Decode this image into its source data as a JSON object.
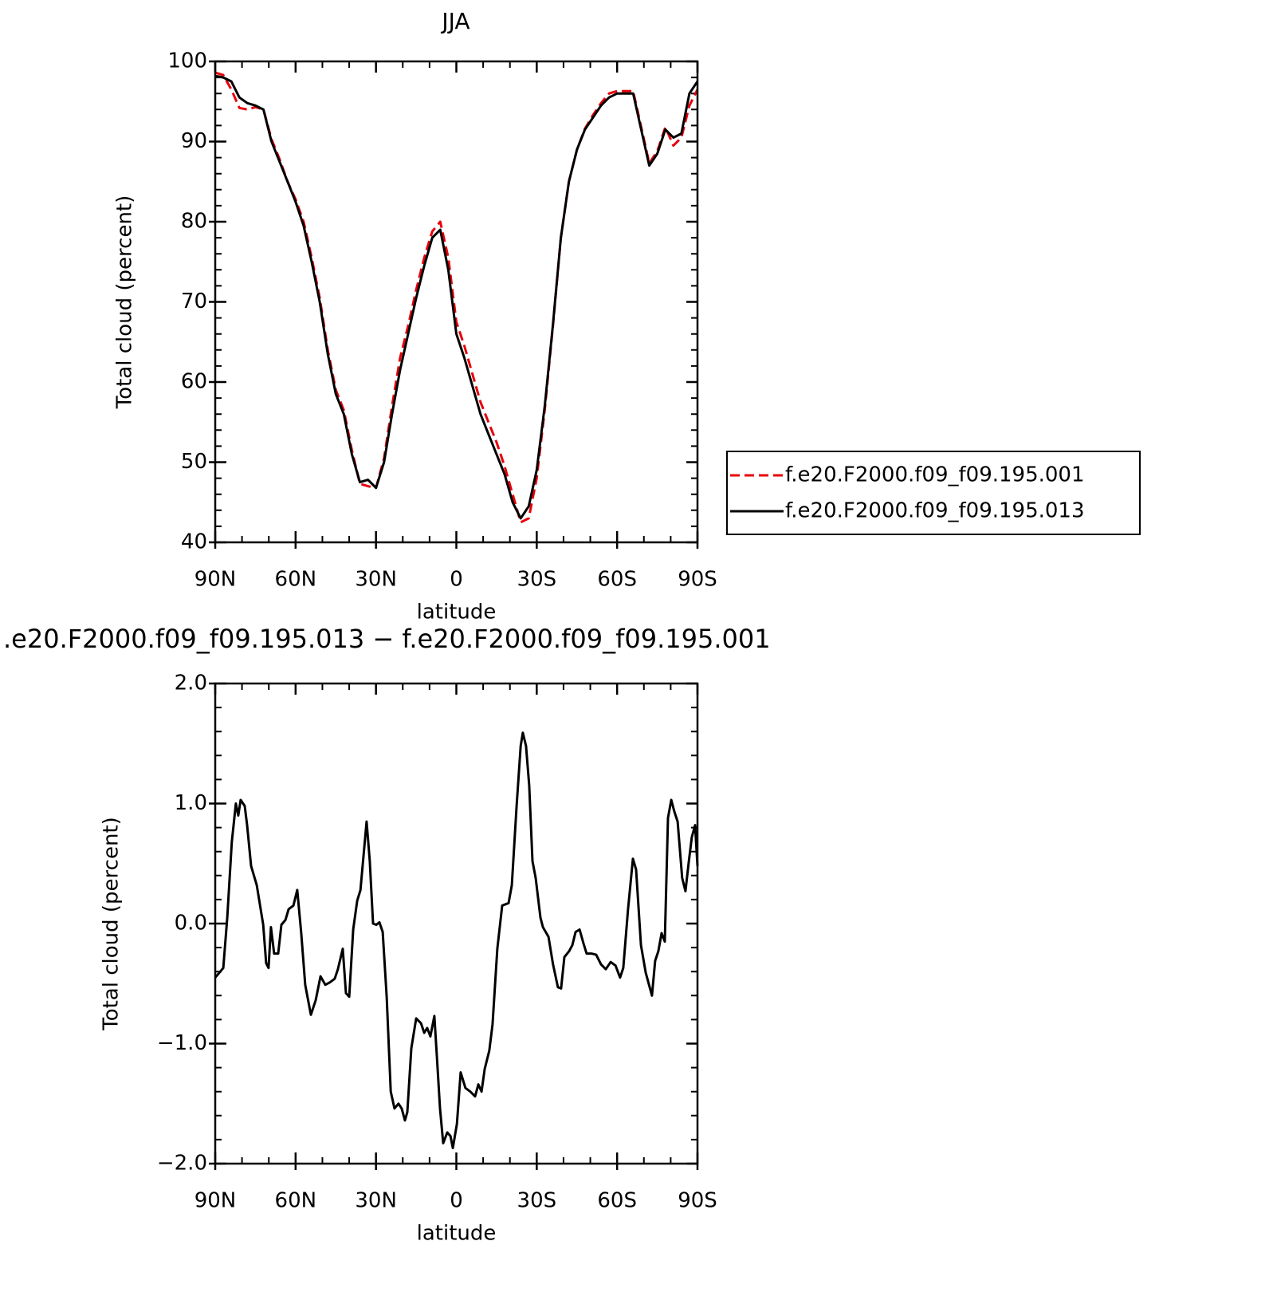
{
  "chart_data": [
    {
      "type": "line",
      "title": "JJA",
      "xlabel": "latitude",
      "ylabel": "Total cloud (percent)",
      "x": [
        90,
        87,
        84,
        81,
        78,
        75,
        72,
        69,
        66,
        63,
        60,
        57,
        54,
        51,
        48,
        45,
        42,
        39,
        36,
        33,
        30,
        27,
        24,
        21,
        18,
        15,
        12,
        9,
        6,
        3,
        0,
        -3,
        -6,
        -9,
        -12,
        -15,
        -18,
        -21,
        -24,
        -27,
        -30,
        -33,
        -36,
        -39,
        -42,
        -45,
        -48,
        -51,
        -54,
        -57,
        -60,
        -63,
        -66,
        -69,
        -72,
        -75,
        -78,
        -81,
        -84,
        -87,
        -90
      ],
      "series": [
        {
          "name": "f.e20.F2000.f09_f09.195.001",
          "color": "#e8000b",
          "line_style": "dashed",
          "values": [
            98.6,
            98.3,
            96.5,
            94.2,
            94.0,
            94.3,
            94.0,
            90.3,
            87.8,
            85.0,
            82.8,
            80.0,
            75.5,
            70.5,
            64.0,
            59.0,
            56.5,
            51.5,
            47.3,
            47.0,
            46.8,
            50.5,
            57.0,
            63.0,
            67.0,
            71.5,
            75.5,
            78.8,
            80.0,
            75.5,
            67.5,
            64.5,
            61.0,
            57.5,
            55.0,
            52.5,
            49.5,
            46.0,
            42.5,
            43.0,
            48.0,
            56.5,
            66.8,
            78.0,
            85.0,
            89.0,
            91.6,
            93.3,
            94.8,
            96.0,
            96.3,
            96.3,
            96.3,
            91.8,
            87.3,
            88.8,
            91.8,
            89.5,
            90.5,
            94.5,
            96.5
          ]
        },
        {
          "name": "f.e20.F2000.f09_f09.195.013",
          "color": "#000000",
          "line_style": "solid",
          "values": [
            98.2,
            98.0,
            97.5,
            95.5,
            94.8,
            94.5,
            94.0,
            90.0,
            87.5,
            85.0,
            82.5,
            79.5,
            75.0,
            70.0,
            63.5,
            58.5,
            56.0,
            51.0,
            47.5,
            47.8,
            46.8,
            50.0,
            56.0,
            61.5,
            66.0,
            70.5,
            74.5,
            78.0,
            79.0,
            74.0,
            66.0,
            63.0,
            59.5,
            56.0,
            53.5,
            51.0,
            48.5,
            45.0,
            43.0,
            44.5,
            49.0,
            57.0,
            67.0,
            78.0,
            85.0,
            89.0,
            91.5,
            93.0,
            94.5,
            95.5,
            96.0,
            96.0,
            96.0,
            91.5,
            87.0,
            88.5,
            91.5,
            90.5,
            91.0,
            96.0,
            97.5
          ]
        }
      ],
      "xlim": [
        90,
        -90
      ],
      "xticks": [
        {
          "value": 90,
          "label": "90N"
        },
        {
          "value": 60,
          "label": "60N"
        },
        {
          "value": 30,
          "label": "30N"
        },
        0,
        {
          "value": -30,
          "label": "30S"
        },
        {
          "value": -60,
          "label": "60S"
        },
        {
          "value": -90,
          "label": "90S"
        }
      ],
      "ylim": [
        40,
        100
      ],
      "yticks": [
        40,
        50,
        60,
        70,
        80,
        90,
        100
      ],
      "legend": "right"
    },
    {
      "type": "line",
      "title": ".e20.F2000.f09_f09.195.013 − f.e20.F2000.f09_f09.195.001",
      "xlabel": "latitude",
      "ylabel": "Total cloud (percent)",
      "x": [
        90,
        87,
        85.5,
        83.8,
        82.3,
        81.4,
        80.5,
        79,
        78.1,
        76.6,
        74.5,
        72.1,
        71,
        70.1,
        69.2,
        68,
        66.5,
        65.3,
        63.8,
        62.6,
        60.8,
        59.4,
        57.9,
        56.4,
        54.3,
        52.5,
        50.7,
        48.9,
        47.2,
        45.4,
        44.2,
        42.4,
        41.2,
        40,
        38.5,
        37,
        35.8,
        33.5,
        32.3,
        31.1,
        29.9,
        28.7,
        27.5,
        26,
        24.5,
        23.1,
        21.6,
        20.4,
        19.2,
        18.3,
        16.8,
        15,
        13.2,
        12,
        10.9,
        9.7,
        8.2,
        7.3,
        6.1,
        4.9,
        3.4,
        2.2,
        1.3,
        -0.2,
        -1.6,
        -3.4,
        -5.2,
        -7,
        -8.2,
        -9.4,
        -10.6,
        -12.3,
        -13.5,
        -15.3,
        -17.1,
        -19.5,
        -20.7,
        -22.5,
        -24,
        -24.8,
        -26,
        -27.2,
        -28.4,
        -29.6,
        -31.4,
        -32.3,
        -34.4,
        -36.1,
        -37.9,
        -39.1,
        -40.3,
        -42.1,
        -43.3,
        -44.5,
        -46,
        -47.5,
        -48.6,
        -50.4,
        -52.2,
        -54,
        -55.8,
        -57.6,
        -59.4,
        -61.1,
        -62.3,
        -64.1,
        -65.9,
        -67.1,
        -68.9,
        -70.7,
        -73,
        -74.2,
        -75.4,
        -76.6,
        -77.8,
        -79,
        -80.2,
        -81.4,
        -82.6,
        -84.3,
        -85.5,
        -86.8,
        -87.9,
        -89.1,
        -90
      ],
      "series": [
        {
          "color": "#000000",
          "line_style": "solid",
          "values": [
            -0.45,
            -0.37,
            0.05,
            0.68,
            1.0,
            0.9,
            1.03,
            0.98,
            0.82,
            0.48,
            0.32,
            -0.01,
            -0.33,
            -0.37,
            -0.03,
            -0.25,
            -0.25,
            -0.01,
            0.03,
            0.12,
            0.15,
            0.28,
            -0.08,
            -0.51,
            -0.76,
            -0.64,
            -0.44,
            -0.51,
            -0.49,
            -0.46,
            -0.38,
            -0.21,
            -0.58,
            -0.61,
            -0.05,
            0.19,
            0.28,
            0.85,
            0.52,
            0,
            -0.01,
            0.01,
            -0.07,
            -0.61,
            -1.4,
            -1.54,
            -1.5,
            -1.54,
            -1.64,
            -1.57,
            -1.04,
            -0.79,
            -0.83,
            -0.91,
            -0.87,
            -0.94,
            -0.77,
            -1.1,
            -1.54,
            -1.83,
            -1.74,
            -1.77,
            -1.87,
            -1.67,
            -1.24,
            -1.37,
            -1.4,
            -1.44,
            -1.34,
            -1.4,
            -1.21,
            -1.06,
            -0.84,
            -0.21,
            0.15,
            0.17,
            0.32,
            0.98,
            1.48,
            1.59,
            1.48,
            1.15,
            0.52,
            0.38,
            0.05,
            -0.03,
            -0.11,
            -0.34,
            -0.53,
            -0.54,
            -0.28,
            -0.23,
            -0.18,
            -0.07,
            -0.05,
            -0.17,
            -0.25,
            -0.25,
            -0.26,
            -0.34,
            -0.38,
            -0.32,
            -0.35,
            -0.45,
            -0.37,
            0.12,
            0.54,
            0.45,
            -0.18,
            -0.41,
            -0.6,
            -0.31,
            -0.23,
            -0.08,
            -0.15,
            0.88,
            1.03,
            0.93,
            0.85,
            0.38,
            0.27,
            0.52,
            0.72,
            0.82,
            0.48
          ]
        }
      ],
      "xlim": [
        90,
        -90
      ],
      "xticks": [
        {
          "value": 90,
          "label": "90N"
        },
        {
          "value": 60,
          "label": "60N"
        },
        {
          "value": 30,
          "label": "30N"
        },
        0,
        {
          "value": -30,
          "label": "30S"
        },
        {
          "value": -60,
          "label": "60S"
        },
        {
          "value": -90,
          "label": "90S"
        }
      ],
      "ylim": [
        -2,
        2
      ],
      "yticks": [
        {
          "value": -2,
          "label": "−2.0"
        },
        {
          "value": -1,
          "label": "−1.0"
        },
        {
          "value": 0,
          "label": "0.0"
        },
        {
          "value": 1,
          "label": "1.0"
        },
        {
          "value": 2,
          "label": "2.0"
        }
      ]
    }
  ]
}
